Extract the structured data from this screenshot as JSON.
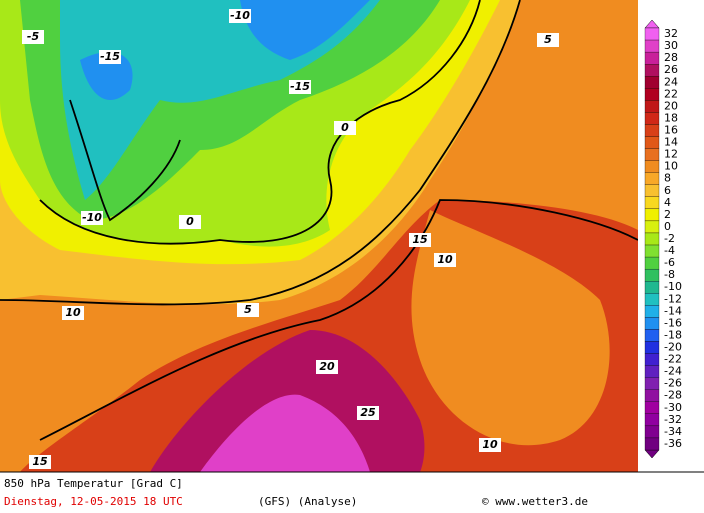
{
  "footer": {
    "title": "850 hPa Temperatur [Grad C]",
    "date": "Dienstag, 12-05-2015  18 UTC",
    "model": "(GFS)   (Analyse)",
    "source": "© www.wetter3.de"
  },
  "colorbar": {
    "labels": [
      32,
      30,
      28,
      26,
      24,
      22,
      20,
      18,
      16,
      14,
      12,
      10,
      8,
      6,
      4,
      2,
      0,
      -2,
      -4,
      -6,
      -8,
      -10,
      -12,
      -14,
      -16,
      -18,
      -20,
      -22,
      -24,
      -26,
      -28,
      -30,
      -32,
      -34,
      -36
    ],
    "colors": [
      "#f060f0",
      "#e040c8",
      "#c8209a",
      "#b01060",
      "#a00030",
      "#b00020",
      "#c01818",
      "#d02818",
      "#d84018",
      "#e05818",
      "#e87020",
      "#f08c20",
      "#f8a828",
      "#f8c030",
      "#f8d820",
      "#f0f000",
      "#d8f010",
      "#a8e818",
      "#80e030",
      "#50d040",
      "#30c060",
      "#20b890",
      "#20c0c0",
      "#20b0e8",
      "#2090f0",
      "#2060f0",
      "#2030e0",
      "#4020d0",
      "#6020c0",
      "#8020b0",
      "#9010a0",
      "#a000a0",
      "#9000a0",
      "#800090",
      "#700080"
    ]
  },
  "map_labels": [
    -15,
    -10,
    -5,
    0,
    5,
    10,
    15,
    20,
    25,
    -10,
    5,
    10,
    15,
    0,
    -15,
    10
  ]
}
